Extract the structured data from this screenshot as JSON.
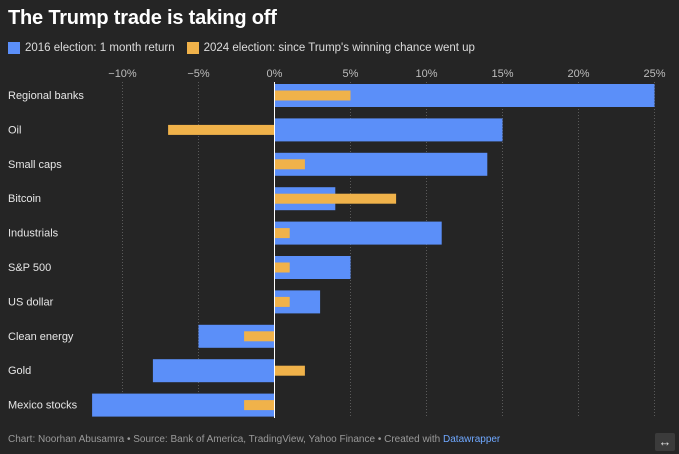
{
  "title": "The Trump trade is taking off",
  "legend": {
    "items": [
      {
        "label": "2016 election: 1 month return",
        "color": "#5b8ff9"
      },
      {
        "label": "2024 election: since Trump's winning chance went up",
        "color": "#f0b24a"
      }
    ]
  },
  "footer": {
    "prefix": "Chart: Noorhan Abusamra • Source: Bank of America, TradingView, Yahoo Finance • Created with ",
    "link": "Datawrapper"
  },
  "expand_icon": "↔",
  "chart_data": {
    "type": "bar",
    "orientation": "horizontal",
    "title": "The Trump trade is taking off",
    "categories": [
      "Regional banks",
      "Oil",
      "Small caps",
      "Bitcoin",
      "Industrials",
      "S&P 500",
      "US dollar",
      "Clean energy",
      "Gold",
      "Mexico stocks"
    ],
    "series": [
      {
        "name": "2016 election: 1 month return",
        "color": "#5b8ff9",
        "values": [
          25,
          15,
          14,
          4,
          11,
          5,
          3,
          -5,
          -8,
          -12
        ]
      },
      {
        "name": "2024 election: since Trump's winning chance went up",
        "color": "#f0b24a",
        "values": [
          5,
          -7,
          2,
          8,
          1,
          1,
          1,
          -2,
          2,
          -2
        ]
      }
    ],
    "xlim": [
      -12,
      26
    ],
    "xticks": [
      -10,
      -5,
      0,
      5,
      10,
      15,
      20,
      25
    ],
    "xtick_labels": [
      "−10%",
      "−5%",
      "0%",
      "5%",
      "10%",
      "15%",
      "20%",
      "25%"
    ],
    "grid": true,
    "legend_position": "top-left"
  }
}
